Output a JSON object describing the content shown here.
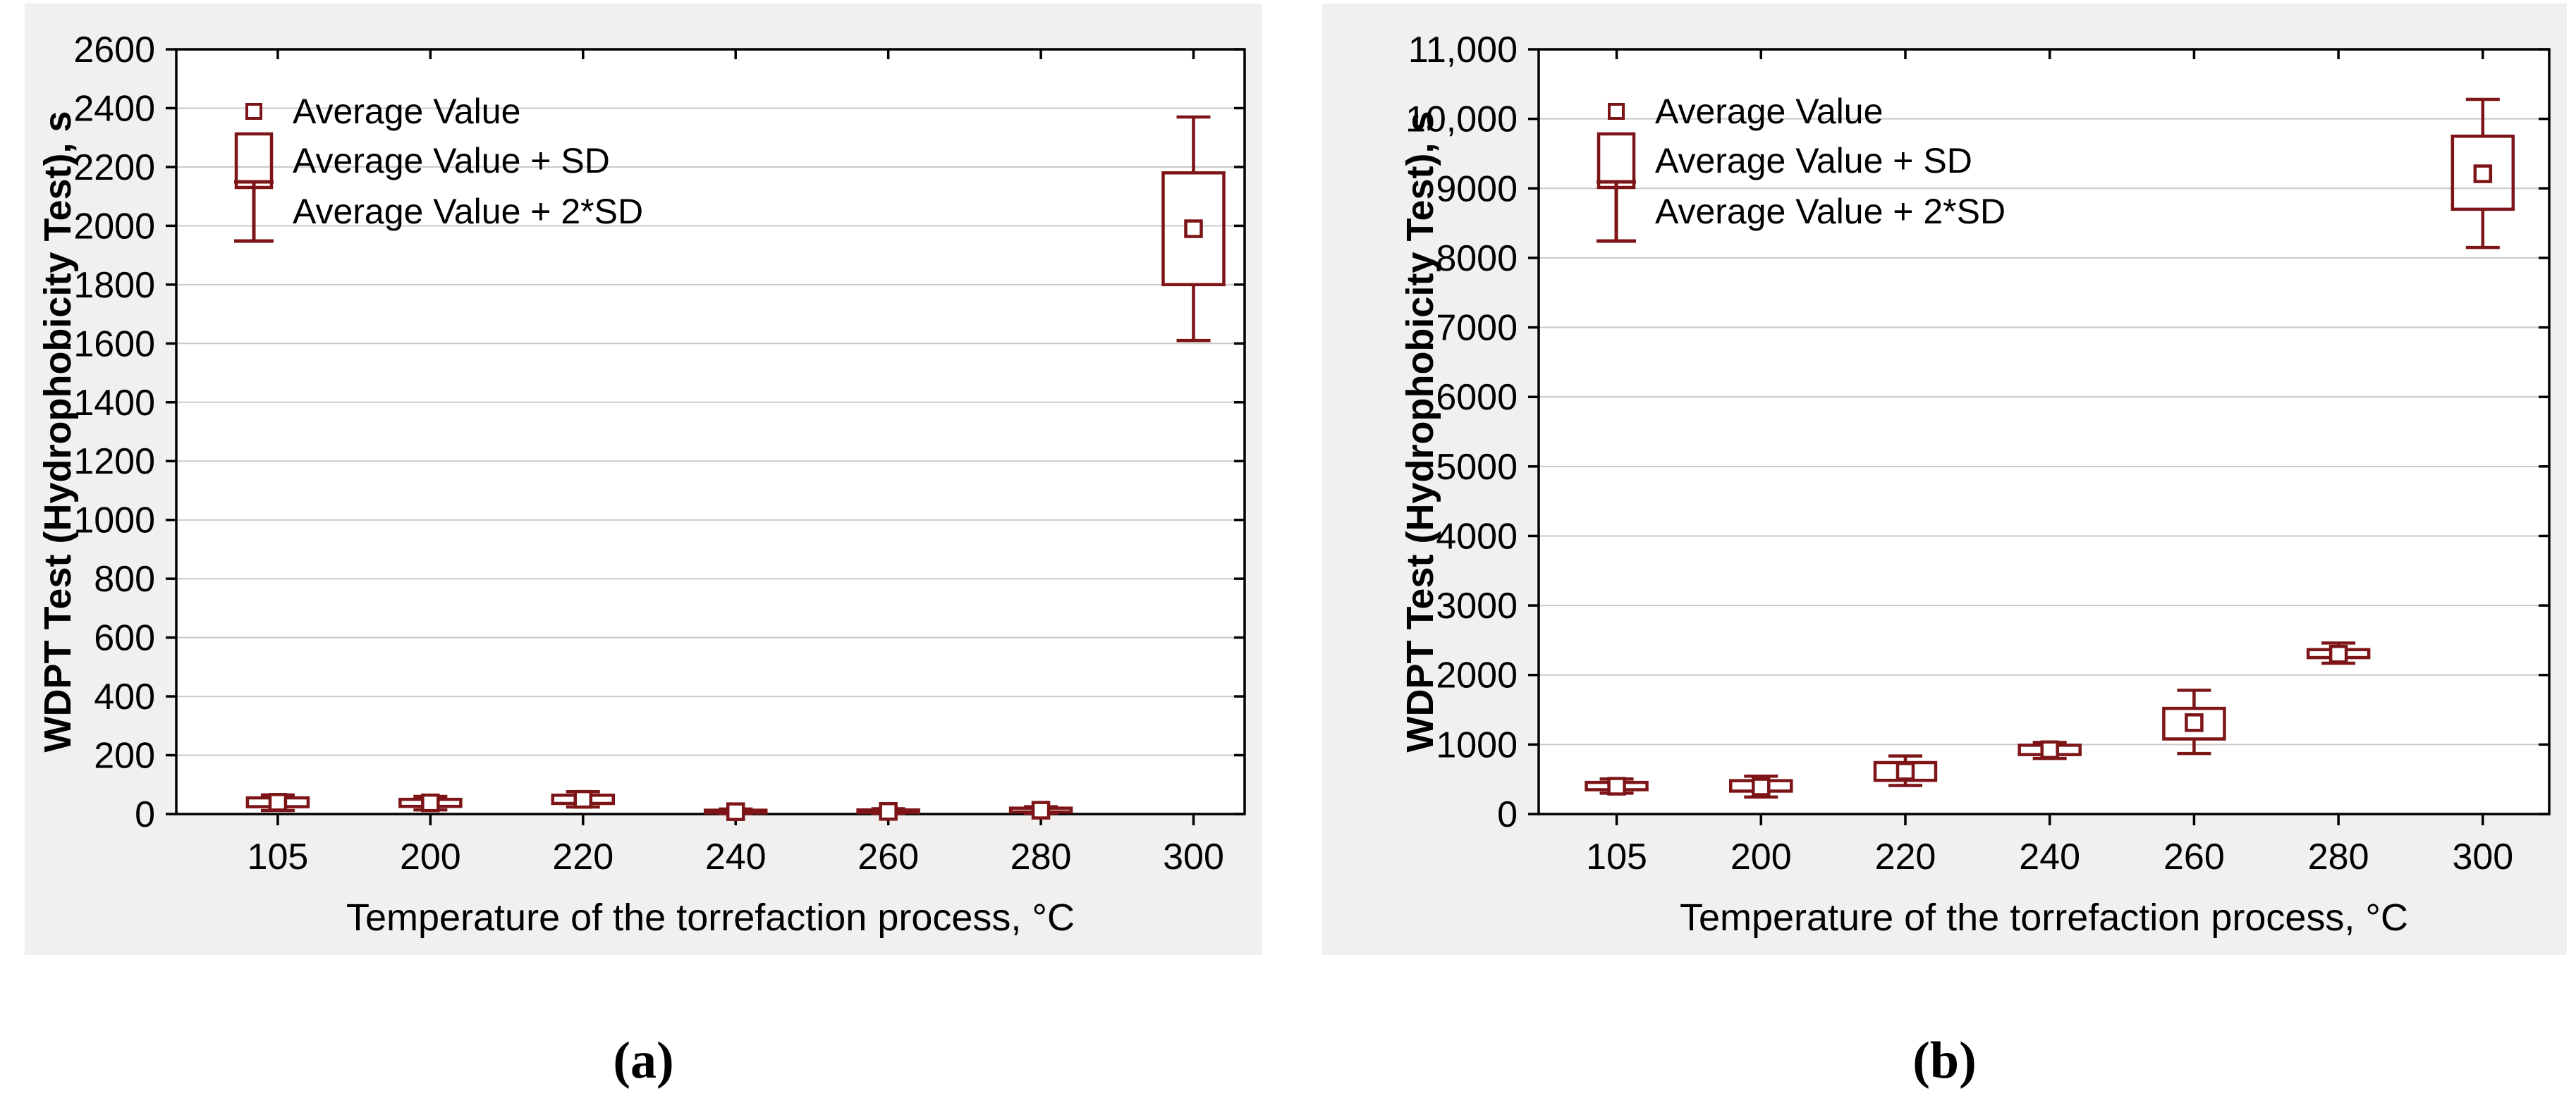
{
  "figure": {
    "background_color": "#f1f0ee",
    "plot_background": "#ffffff",
    "accent_color": "#7d1417",
    "grid_color": "#c9c9c9",
    "axis_color": "#000000",
    "text_color": "#000000"
  },
  "legend": {
    "items": [
      {
        "label": "Average Value",
        "marker": "mean-square-marker"
      },
      {
        "label": "Average Value + SD",
        "marker": "sd-box-marker"
      },
      {
        "label": "Average Value + 2*SD",
        "marker": "sd2-whisker-marker"
      }
    ]
  },
  "chart_data": [
    {
      "type": "box",
      "panel": "a",
      "caption": "(a)",
      "xlabel": "Temperature of the torrefaction process, °C",
      "ylabel": "WDPT Test (Hydrophobicity Test), s",
      "categories": [
        "105",
        "200",
        "220",
        "240",
        "260",
        "280",
        "300"
      ],
      "ylim": [
        0,
        2600
      ],
      "ytick_step": 200,
      "ytick_labels": [
        "0",
        "200",
        "400",
        "600",
        "800",
        "1000",
        "1200",
        "1400",
        "1600",
        "1800",
        "2000",
        "2200",
        "2400",
        "2600"
      ],
      "grid": true,
      "legend_position": "top-left",
      "boxes": [
        {
          "category": "105",
          "mean": 40,
          "box_low": 25,
          "box_high": 55,
          "whisker_low": 12,
          "whisker_high": 65
        },
        {
          "category": "200",
          "mean": 38,
          "box_low": 26,
          "box_high": 50,
          "whisker_low": 14,
          "whisker_high": 60
        },
        {
          "category": "220",
          "mean": 50,
          "box_low": 36,
          "box_high": 64,
          "whisker_low": 24,
          "whisker_high": 76
        },
        {
          "category": "240",
          "mean": 8,
          "box_low": 4,
          "box_high": 13,
          "whisker_low": 2,
          "whisker_high": 17
        },
        {
          "category": "260",
          "mean": 9,
          "box_low": 5,
          "box_high": 14,
          "whisker_low": 2,
          "whisker_high": 18
        },
        {
          "category": "280",
          "mean": 13,
          "box_low": 7,
          "box_high": 20,
          "whisker_low": 3,
          "whisker_high": 25
        },
        {
          "category": "300",
          "mean": 1990,
          "box_low": 1800,
          "box_high": 2180,
          "whisker_low": 1610,
          "whisker_high": 2370
        }
      ]
    },
    {
      "type": "box",
      "panel": "b",
      "caption": "(b)",
      "xlabel": "Temperature of the torrefaction process, °C",
      "ylabel": "WDPT Test (Hydrophobicity Test), s",
      "categories": [
        "105",
        "200",
        "220",
        "240",
        "260",
        "280",
        "300"
      ],
      "ylim": [
        0,
        11000
      ],
      "ytick_step": 1000,
      "ytick_labels": [
        "0",
        "1000",
        "2000",
        "3000",
        "4000",
        "5000",
        "6000",
        "7000",
        "8000",
        "9000",
        "10,000",
        "11,000"
      ],
      "grid": true,
      "legend_position": "top-left",
      "boxes": [
        {
          "category": "105",
          "mean": 400,
          "box_low": 350,
          "box_high": 455,
          "whisker_low": 300,
          "whisker_high": 505
        },
        {
          "category": "200",
          "mean": 390,
          "box_low": 330,
          "box_high": 480,
          "whisker_low": 245,
          "whisker_high": 545
        },
        {
          "category": "220",
          "mean": 615,
          "box_low": 485,
          "box_high": 740,
          "whisker_low": 410,
          "whisker_high": 835
        },
        {
          "category": "240",
          "mean": 925,
          "box_low": 855,
          "box_high": 990,
          "whisker_low": 800,
          "whisker_high": 1030
        },
        {
          "category": "260",
          "mean": 1315,
          "box_low": 1080,
          "box_high": 1520,
          "whisker_low": 870,
          "whisker_high": 1780
        },
        {
          "category": "280",
          "mean": 2300,
          "box_low": 2250,
          "box_high": 2365,
          "whisker_low": 2170,
          "whisker_high": 2460
        },
        {
          "category": "300",
          "mean": 9210,
          "box_low": 8700,
          "box_high": 9750,
          "whisker_low": 8150,
          "whisker_high": 10280
        }
      ]
    }
  ]
}
